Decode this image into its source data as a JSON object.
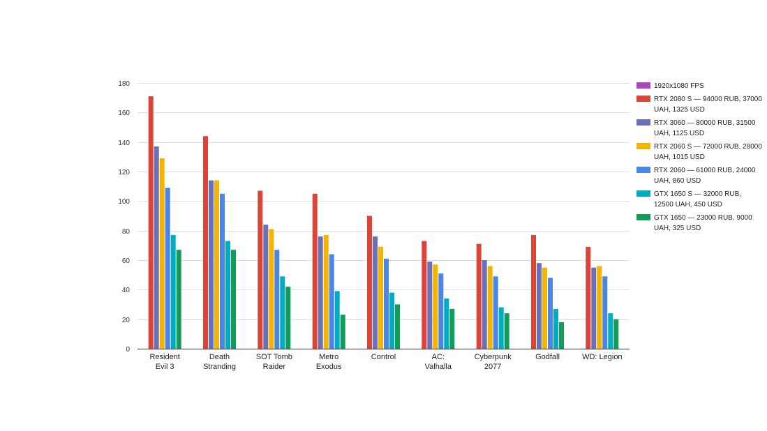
{
  "chart_data": {
    "type": "bar",
    "categories": [
      "Resident Evil 3",
      "Death Stranding",
      "SOT Tomb Raider",
      "Metro Exodus",
      "Control",
      "AC: Valhalla",
      "Cyberpunk 2077",
      "Godfall",
      "WD: Legion"
    ],
    "legend_header": {
      "name": "1920x1080 FPS",
      "color": "#ab47bc"
    },
    "series": [
      {
        "name": "RTX 2080 S — 94000 RUB, 37000 UAH, 1325 USD",
        "color": "#db4437",
        "values": [
          171,
          144,
          107,
          105,
          90,
          73,
          71,
          77,
          69
        ]
      },
      {
        "name": "RTX 3060 — 80000 RUB, 31500 UAH, 1125 USD",
        "color": "#6b70b8",
        "values": [
          137,
          114,
          84,
          76,
          76,
          59,
          60,
          58,
          55
        ]
      },
      {
        "name": "RTX 2060 S — 72000 RUB, 28000 UAH, 1015 USD",
        "color": "#f4b400",
        "values": [
          129,
          114,
          81,
          77,
          69,
          57,
          56,
          55,
          56
        ]
      },
      {
        "name": "RTX 2060 — 61000 RUB, 24000 UAH, 860 USD",
        "color": "#4a86e8",
        "values": [
          109,
          105,
          67,
          64,
          61,
          51,
          49,
          48,
          49
        ]
      },
      {
        "name": "GTX 1650 S — 32000 RUB, 12500 UAH, 450 USD",
        "color": "#00acc1",
        "values": [
          77,
          73,
          49,
          39,
          38,
          34,
          28,
          27,
          24
        ]
      },
      {
        "name": "GTX 1650 — 23000 RUB, 9000 UAH, 325 USD",
        "color": "#0f9d58",
        "values": [
          67,
          67,
          42,
          23,
          30,
          27,
          24,
          18,
          20
        ]
      }
    ],
    "ylim": [
      0,
      180
    ],
    "yticks": [
      "0",
      "20",
      "40",
      "60",
      "80",
      "100",
      "120",
      "140",
      "160",
      "180"
    ],
    "grid": true,
    "legend_position": "right",
    "title": "",
    "xlabel": "",
    "ylabel": ""
  }
}
